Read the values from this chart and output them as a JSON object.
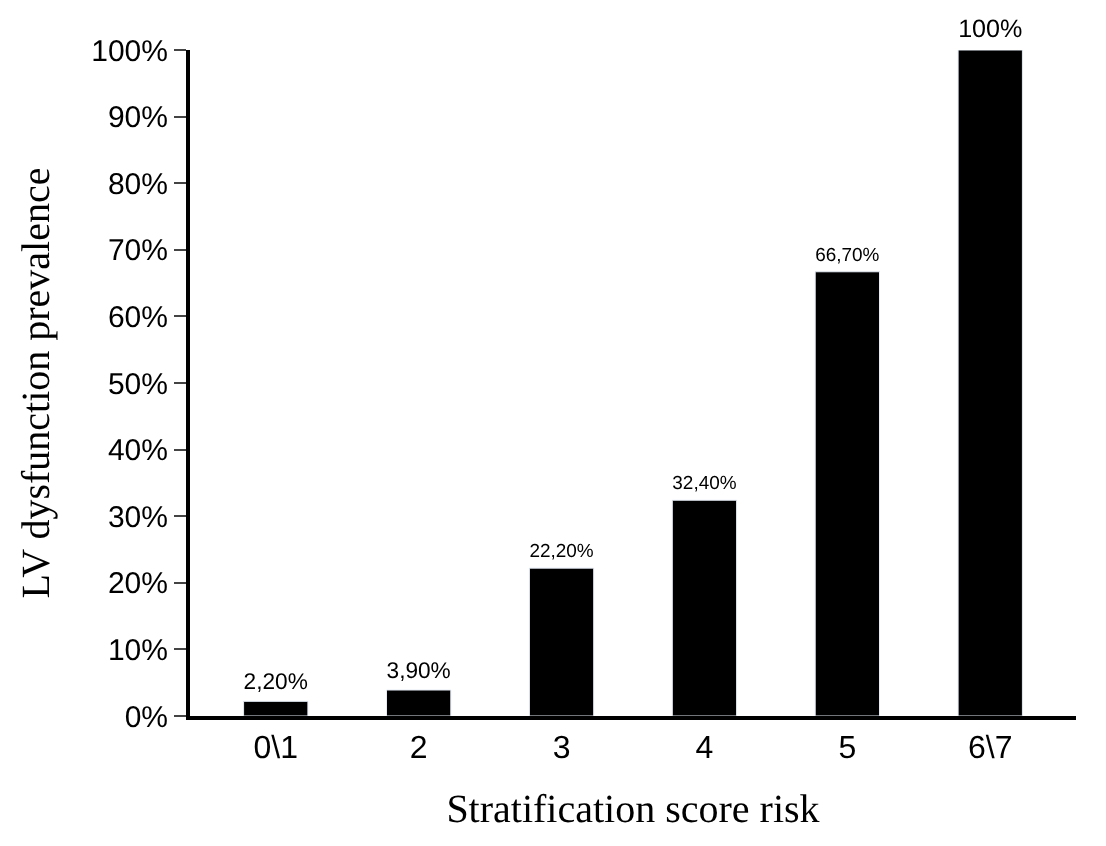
{
  "chart_data": {
    "type": "bar",
    "xlabel": "Stratification score risk",
    "ylabel": "LV dysfunction prevalence",
    "categories": [
      "0\\1",
      "2",
      "3",
      "4",
      "5",
      "6\\7"
    ],
    "values": [
      2.2,
      3.9,
      22.2,
      32.4,
      66.7,
      100
    ],
    "value_labels": [
      "2,20%",
      "3,90%",
      "22,20%",
      "32,40%",
      "66,70%",
      "100%"
    ],
    "color": "#000000",
    "ylim": [
      0,
      100
    ],
    "yticks": [
      {
        "value": 0,
        "label": "0%"
      },
      {
        "value": 10,
        "label": "10%"
      },
      {
        "value": 20,
        "label": "20%"
      },
      {
        "value": 30,
        "label": "30%"
      },
      {
        "value": 40,
        "label": "40%"
      },
      {
        "value": 50,
        "label": "50%"
      },
      {
        "value": 60,
        "label": "60%"
      },
      {
        "value": 70,
        "label": "70%"
      },
      {
        "value": 80,
        "label": "80%"
      },
      {
        "value": 90,
        "label": "90%"
      },
      {
        "value": 100,
        "label": "100%"
      }
    ],
    "tick_labels": "xy"
  }
}
